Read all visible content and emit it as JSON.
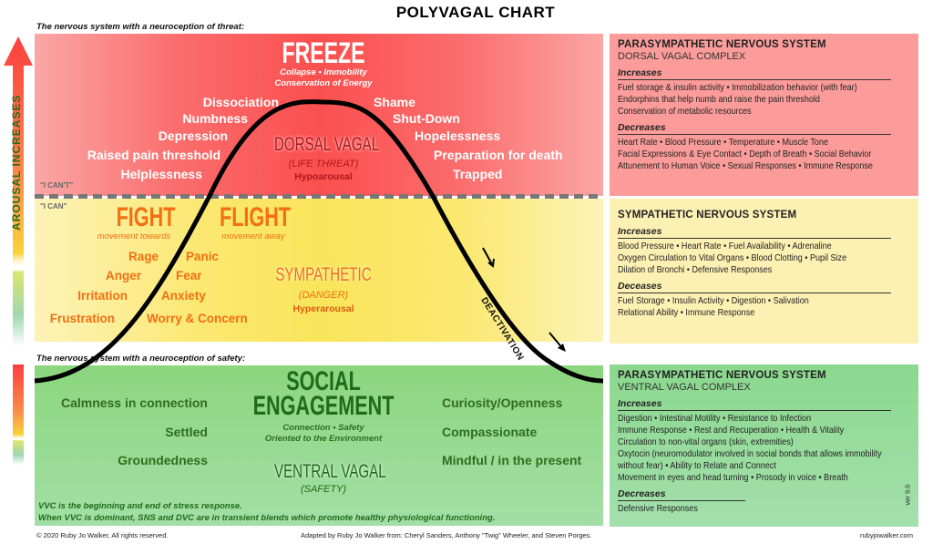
{
  "title": "POLYVAGAL CHART",
  "threat_caption": "The nervous system with a neuroception of threat:",
  "safety_caption": "The nervous system with a neuroception of safety:",
  "arousal_label": "AROUSAL INCREASES",
  "freeze": {
    "title": "FREEZE",
    "sub1": "Collapse • Immobility",
    "sub2": "Conservation of Energy",
    "left": [
      "Dissociation",
      "Numbness",
      "Depression",
      "Raised pain threshold",
      "Helplessness"
    ],
    "right": [
      "Shame",
      "Shut-Down",
      "Hopelessness",
      "Preparation for death",
      "Trapped"
    ],
    "state": "DORSAL VAGAL",
    "threat": "(LIFE THREAT)",
    "arousal": "Hypoarousal",
    "cant": "\"I CAN'T\""
  },
  "fight": {
    "can": "\"I CAN\"",
    "fight": "FIGHT",
    "fight_sub": "movement towards",
    "flight": "FLIGHT",
    "flight_sub": "movement away",
    "left": [
      "Rage",
      "Anger",
      "Irritation",
      "Frustration"
    ],
    "right": [
      "Panic",
      "Fear",
      "Anxiety",
      "Worry & Concern"
    ],
    "state": "SYMPATHETIC",
    "threat": "(DANGER)",
    "arousal": "Hyperarousal",
    "deactivation": "DEACTIVATION"
  },
  "social": {
    "title1": "SOCIAL",
    "title2": "ENGAGEMENT",
    "sub1": "Connection • Safety",
    "sub2": "Oriented to the Environment",
    "left": [
      "Calmness in connection",
      "Settled",
      "Groundedness"
    ],
    "right": [
      "Curiosity/Openness",
      "Compassionate",
      "Mindful / in the present"
    ],
    "state": "VENTRAL VAGAL",
    "threat": "(SAFETY)",
    "note1": "VVC is the beginning and end of stress response.",
    "note2": "When VVC is dominant, SNS and DVC are in transient blends which promote healthy physiological functioning."
  },
  "panels": {
    "dorsal": {
      "title": "PARASYMPATHETIC NERVOUS SYSTEM",
      "sub": "DORSAL VAGAL  COMPLEX",
      "inc_label": "Increases",
      "inc": [
        "Fuel storage & insulin activity • Immobilization behavior (with fear)",
        "Endorphins that help numb and raise the pain threshold",
        "Conservation of metabolic resources"
      ],
      "dec_label": "Decreases",
      "dec": [
        "Heart Rate • Blood Pressure • Temperature • Muscle Tone",
        "Facial Expressions & Eye Contact • Depth of Breath • Social Behavior",
        "Attunement to Human Voice • Sexual Responses • Immune Response"
      ]
    },
    "sympathetic": {
      "title": "SYMPATHETIC NERVOUS SYSTEM",
      "inc_label": "Increases",
      "inc": [
        "Blood Pressure  •  Heart Rate  •  Fuel Availability  •  Adrenaline",
        "Oxygen Circulation to Vital Organs  •  Blood Clotting  •  Pupil Size",
        "Dilation of Bronchi  •  Defensive Responses"
      ],
      "dec_label": "Deceases",
      "dec": [
        "Fuel Storage  •  Insulin Activity  •  Digestion  •  Salivation",
        "Relational Ability  •  Immune Response"
      ]
    },
    "ventral": {
      "title": "PARASYMPATHETIC NERVOUS SYSTEM",
      "sub": "VENTRAL VAGAL COMPLEX",
      "inc_label": "Increases",
      "inc": [
        "Digestion • Intestinal Motility • Resistance to Infection",
        "Immune Response • Rest and Recuperation • Health & Vitality",
        "Circulation to non-vital organs (skin, extremities)",
        "Oxytocin (neuromodulator involved in social bonds that allows immobility",
        "without fear) • Ability to Relate and Connect",
        "Movement in eyes and head turning • Prosody in voice • Breath"
      ],
      "dec_label": "Decreases",
      "dec": [
        "Defensive Responses"
      ]
    }
  },
  "footer": {
    "copyright": "© 2020 Ruby Jo Walker, All rights reserved.",
    "adapted": "Adapted by Ruby Jo Walker from: Cheryl Sanders, Anthony \"Twig\" Wheeler, and Steven Porges.",
    "site": "rubyjowalker.com",
    "version": "ver 9.0"
  },
  "colors": {
    "freeze": "#fb4f4f",
    "fight": "#f9e55a",
    "social": "#8cd67e",
    "orange_text": "#f26f12",
    "green_text": "#2e6e1e"
  }
}
